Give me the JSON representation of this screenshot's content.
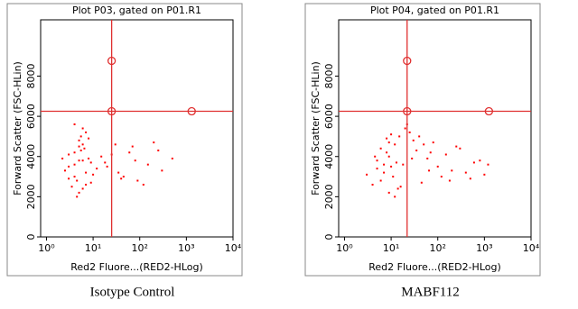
{
  "chart_data": [
    {
      "type": "scatter",
      "title": "Plot P03, gated on P01.R1",
      "x_label": "Red2 Fluore...(RED2-HLog)",
      "y_label": "Forward Scatter (FSC-HLin)",
      "caption": "Isotype Control",
      "x_scale": "log",
      "xlim": [
        0.75,
        10000
      ],
      "xticks": [
        {
          "value": 1,
          "label": "10⁰"
        },
        {
          "value": 10,
          "label": "10¹"
        },
        {
          "value": 100,
          "label": "10²"
        },
        {
          "value": 1000,
          "label": "10³"
        },
        {
          "value": 10000,
          "label": "10⁴"
        }
      ],
      "ylim": [
        0,
        10800
      ],
      "yticks": [
        0,
        2000,
        4000,
        6000,
        8000
      ],
      "color": "#ff0000",
      "gate_color": "#e03030",
      "gate_x": 25,
      "gate_y": 6250,
      "markers": [
        [
          25,
          8760
        ],
        [
          25,
          6250
        ],
        [
          1300,
          6250
        ]
      ],
      "x": [
        3,
        4,
        5,
        6,
        7,
        4.5,
        5.5,
        8,
        3.5,
        6.5,
        4,
        5,
        7,
        9,
        2.5,
        3,
        6,
        5,
        4,
        8,
        10,
        5.5,
        4.5,
        3,
        6,
        7,
        5,
        4,
        6,
        12,
        2.2,
        9,
        15,
        20,
        30,
        45,
        60,
        80,
        120,
        200,
        300,
        500,
        40,
        70,
        150,
        25,
        35,
        90,
        250,
        18
      ],
      "values": [
        3500,
        4200,
        3800,
        4600,
        3200,
        2800,
        5000,
        3900,
        2500,
        4400,
        3000,
        4800,
        2600,
        3700,
        3300,
        4100,
        5400,
        2200,
        3600,
        4900,
        3100,
        4300,
        2000,
        2900,
        3800,
        5200,
        4500,
        5600,
        2400,
        3400,
        3900,
        2700,
        4000,
        3500,
        4600,
        3000,
        4200,
        3800,
        2600,
        4700,
        3300,
        3900,
        2900,
        4500,
        3600,
        4100,
        3200,
        2800,
        4300,
        3700
      ]
    },
    {
      "type": "scatter",
      "title": "Plot P04, gated on P01.R1",
      "x_label": "Red2 Fluore...(RED2-HLog)",
      "y_label": "Forward Scatter (FSC-HLin)",
      "caption": "MABF112",
      "x_scale": "log",
      "xlim": [
        0.75,
        10000
      ],
      "xticks": [
        {
          "value": 1,
          "label": "10⁰"
        },
        {
          "value": 10,
          "label": "10¹"
        },
        {
          "value": 100,
          "label": "10²"
        },
        {
          "value": 1000,
          "label": "10³"
        },
        {
          "value": 10000,
          "label": "10⁴"
        }
      ],
      "ylim": [
        0,
        10800
      ],
      "yticks": [
        0,
        2000,
        4000,
        6000,
        8000
      ],
      "color": "#ff0000",
      "gate_color": "#e03030",
      "gate_x": 22,
      "gate_y": 6250,
      "markers": [
        [
          22,
          8760
        ],
        [
          22,
          6250
        ],
        [
          1250,
          6250
        ]
      ],
      "x": [
        5,
        8,
        10,
        6,
        12,
        15,
        20,
        7,
        9,
        4,
        30,
        25,
        40,
        18,
        11,
        6,
        14,
        8,
        5,
        50,
        60,
        22,
        35,
        9,
        13,
        3,
        80,
        100,
        150,
        200,
        300,
        500,
        800,
        1200,
        45,
        70,
        120,
        250,
        400,
        28,
        16,
        7,
        10,
        12,
        4.5,
        9,
        65,
        180,
        600,
        1000
      ],
      "values": [
        3800,
        4200,
        3500,
        2800,
        4600,
        5000,
        5400,
        3200,
        4000,
        2600,
        4800,
        5200,
        5000,
        3600,
        3000,
        4400,
        2400,
        4900,
        3400,
        4600,
        3900,
        5600,
        4300,
        2200,
        3700,
        3100,
        4700,
        3500,
        4100,
        3300,
        4400,
        2900,
        3800,
        3600,
        2700,
        4200,
        3000,
        4500,
        3200,
        3900,
        2500,
        3600,
        5100,
        2000,
        4000,
        4700,
        3300,
        2800,
        3700,
        3100
      ]
    }
  ]
}
